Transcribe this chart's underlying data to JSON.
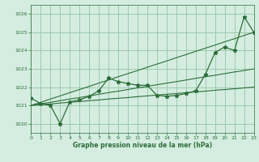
{
  "title": "Graphe pression niveau de la mer (hPa)",
  "bg_color": "#d4ede0",
  "grid_color": "#9dc9ae",
  "line_color": "#2d6e3a",
  "xlim": [
    0,
    23
  ],
  "ylim": [
    1019.5,
    1026.5
  ],
  "yticks": [
    1020,
    1021,
    1022,
    1023,
    1024,
    1025,
    1026
  ],
  "xticks": [
    0,
    1,
    2,
    3,
    4,
    5,
    6,
    7,
    8,
    9,
    10,
    11,
    12,
    13,
    14,
    15,
    16,
    17,
    18,
    19,
    20,
    21,
    22,
    23
  ],
  "x": [
    0,
    1,
    2,
    3,
    4,
    5,
    6,
    7,
    8,
    9,
    10,
    11,
    12,
    13,
    14,
    15,
    16,
    17,
    18,
    19,
    20,
    21,
    22,
    23
  ],
  "y_main": [
    1021.4,
    1021.1,
    1021.0,
    1020.0,
    1021.2,
    1021.3,
    1021.5,
    1021.8,
    1022.5,
    1022.3,
    1022.2,
    1022.1,
    1022.1,
    1021.55,
    1021.5,
    1021.55,
    1021.65,
    1021.8,
    1022.7,
    1023.9,
    1024.2,
    1024.0,
    1025.85,
    1025.0
  ],
  "y_line1": [
    1021.0,
    1021.04,
    1021.08,
    1021.13,
    1021.17,
    1021.21,
    1021.26,
    1021.3,
    1021.35,
    1021.39,
    1021.43,
    1021.48,
    1021.52,
    1021.57,
    1021.61,
    1021.65,
    1021.7,
    1021.74,
    1021.78,
    1021.83,
    1021.87,
    1021.91,
    1021.96,
    1022.0
  ],
  "y_line2": [
    1021.0,
    1021.09,
    1021.17,
    1021.26,
    1021.35,
    1021.43,
    1021.52,
    1021.61,
    1021.7,
    1021.78,
    1021.87,
    1021.96,
    1022.04,
    1022.13,
    1022.22,
    1022.3,
    1022.39,
    1022.48,
    1022.57,
    1022.65,
    1022.74,
    1022.83,
    1022.91,
    1023.0
  ],
  "y_line3": [
    1021.0,
    1021.17,
    1021.35,
    1021.52,
    1021.7,
    1021.87,
    1022.04,
    1022.22,
    1022.39,
    1022.57,
    1022.74,
    1022.91,
    1023.09,
    1023.26,
    1023.43,
    1023.61,
    1023.78,
    1023.96,
    1024.13,
    1024.3,
    1024.48,
    1024.65,
    1024.83,
    1025.0
  ]
}
